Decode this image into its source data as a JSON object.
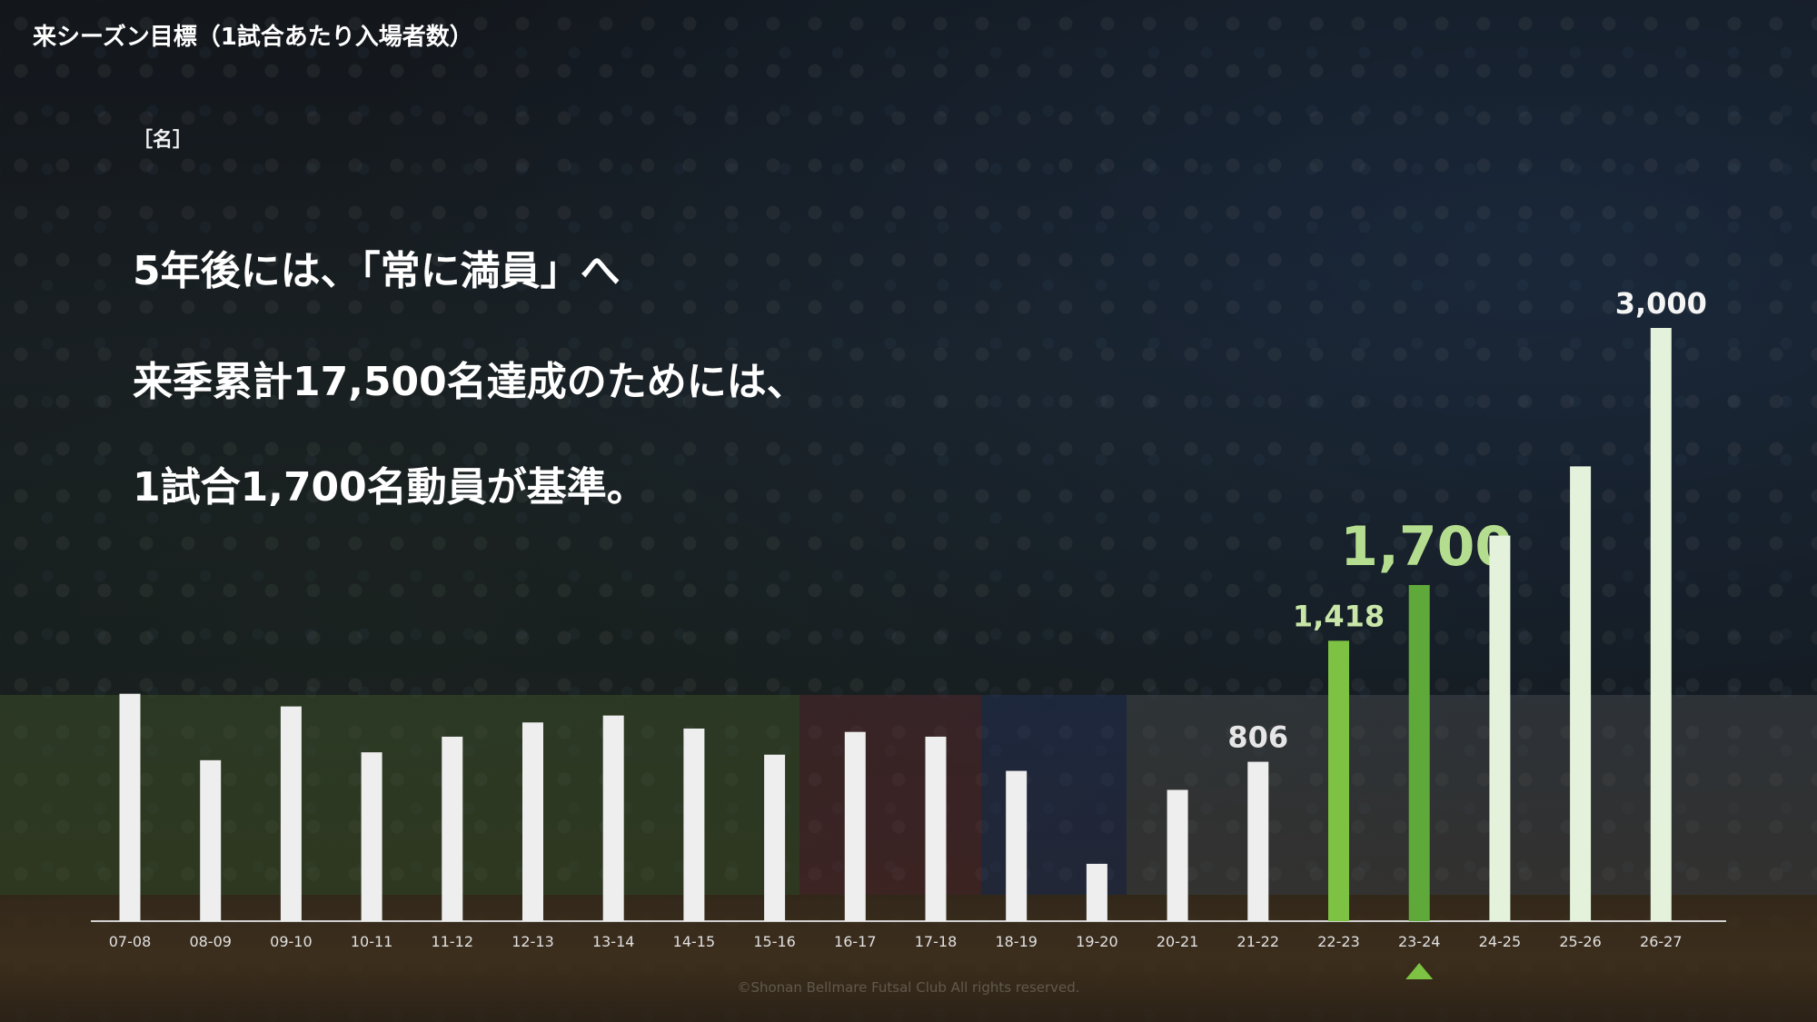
{
  "slide": {
    "title": "来シーズン目標（1試合あたり入場者数）",
    "unit_label": "［名］",
    "message": [
      "5年後には、「常に満員」へ",
      "来季累計17,500名達成のためには、",
      "1試合1,700名動員が基準。"
    ],
    "copyright": "©Shonan Bellmare Futsal Club All rights reserved."
  },
  "colors": {
    "past": "#eeeeee",
    "current": "#7dc243",
    "target": "#5fa83a",
    "future": "#e4f2dc",
    "label_past": "#e6e6e6",
    "label_current": "#c9e6a8",
    "label_target": "#b5dd8f",
    "marker": "#7dc243",
    "axis": "#d0d0d0"
  },
  "chart_data": {
    "type": "bar",
    "categories": [
      "07-08",
      "08-09",
      "09-10",
      "10-11",
      "11-12",
      "12-13",
      "13-14",
      "14-15",
      "15-16",
      "16-17",
      "17-18",
      "18-19",
      "19-20",
      "20-21",
      "21-22",
      "22-23",
      "23-24",
      "24-25",
      "25-26",
      "26-27"
    ],
    "values": [
      1150,
      814,
      1086,
      854,
      933,
      1005,
      1040,
      974,
      842,
      957,
      933,
      760,
      290,
      664,
      806,
      1418,
      1700,
      1950,
      2300,
      3000
    ],
    "categories_style": [
      "past",
      "past",
      "past",
      "past",
      "past",
      "past",
      "past",
      "past",
      "past",
      "past",
      "past",
      "past",
      "past",
      "past",
      "past",
      "current",
      "target",
      "future",
      "future",
      "future"
    ],
    "data_labels": {
      "21-22": "806",
      "22-23": "1,418",
      "23-24": "1,700",
      "26-27": "3,000"
    },
    "highlight_category": "23-24",
    "ylim": [
      0,
      3000
    ],
    "grid": false,
    "legend": "none"
  }
}
